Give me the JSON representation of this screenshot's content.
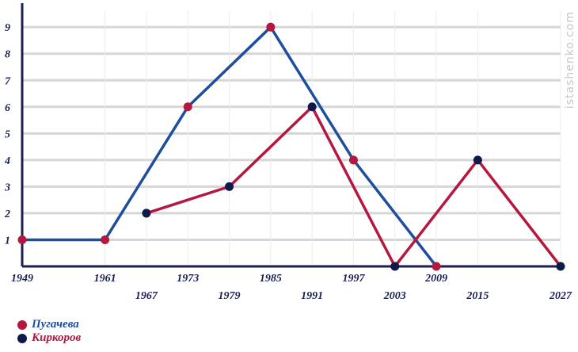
{
  "chart_data": {
    "type": "line",
    "x_ticks_lower_row": [
      1949,
      1961,
      1973,
      1985,
      1997,
      2009
    ],
    "x_ticks_upper_row": [
      1967,
      1979,
      1991,
      2003,
      2015,
      2027
    ],
    "y_ticks": [
      1,
      2,
      3,
      4,
      5,
      6,
      7,
      8,
      9
    ],
    "xlim": [
      1949,
      2027
    ],
    "ylim": [
      0,
      9.9
    ],
    "grid": true,
    "legend_placement": "bottom-left",
    "series": [
      {
        "name": "Пугачева",
        "line_color": "#1f4e9c",
        "marker_color": "#b5173f",
        "points": [
          [
            1949,
            1
          ],
          [
            1961,
            1
          ],
          [
            1973,
            6
          ],
          [
            1985,
            9
          ],
          [
            1997,
            4
          ],
          [
            2009,
            0
          ]
        ]
      },
      {
        "name": "Киркоров",
        "line_color": "#b5173f",
        "marker_color": "#0f1a4a",
        "points": [
          [
            1967,
            2
          ],
          [
            1979,
            3
          ],
          [
            1991,
            6
          ],
          [
            2003,
            0
          ],
          [
            2015,
            4
          ],
          [
            2027,
            0
          ]
        ]
      }
    ]
  },
  "legend": [
    {
      "label": "Пугачева",
      "dot_color": "#b5173f",
      "text_color": "#1f4e9c"
    },
    {
      "label": "Киркоров",
      "dot_color": "#0f1a4a",
      "text_color": "#b5173f"
    }
  ],
  "watermark": "istashenko.com",
  "colors": {
    "axis": "#1a1f4f",
    "grid": "#d6d6d6",
    "tick_label": "#1a1f4f",
    "watermark": "#c8c8c8"
  }
}
